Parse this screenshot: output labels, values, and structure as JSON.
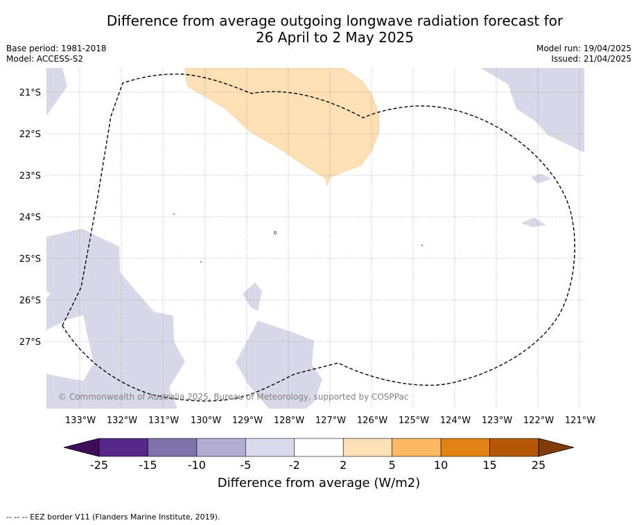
{
  "header": {
    "title_line1": "Difference from average outgoing longwave radiation forecast for",
    "title_line2": "26 April to 2 May 2025",
    "base_period": "Base period: 1981-2018",
    "model": "Model: ACCESS-S2",
    "model_run": "Model run: 19/04/2025",
    "issued": "Issued: 21/04/2025"
  },
  "map": {
    "latitude_labels": [
      "21°S",
      "22°S",
      "23°S",
      "24°S",
      "25°S",
      "26°S",
      "27°S"
    ],
    "longitude_labels": [
      "133°W",
      "132°W",
      "131°W",
      "130°W",
      "129°W",
      "128°W",
      "127°W",
      "126°W",
      "125°W",
      "124°W",
      "123°W",
      "122°W",
      "121°W"
    ],
    "copyright": "© Commonwealth of Australia 2025, Bureau of Meteorology, supported by COSPPac",
    "colors": {
      "light_purple": "#d8d8e9",
      "light_orange": "#fde0b6",
      "eez_line": "#000000",
      "grid": "#808080"
    }
  },
  "colorbar": {
    "title": "Difference from average (W/m2)",
    "tick_labels": [
      "-25",
      "-15",
      "-10",
      "-5",
      "-2",
      "2",
      "5",
      "10",
      "15",
      "25"
    ],
    "colors": [
      "#3f0d59",
      "#542788",
      "#8073ac",
      "#b2abd2",
      "#d8daeb",
      "#ffffff",
      "#fee0b6",
      "#fdb863",
      "#e08214",
      "#b35806",
      "#7f3b08"
    ]
  },
  "footer": {
    "legend_text": "-- -- -- EEZ border V11 (Flanders Marine Institute, 2019)."
  }
}
